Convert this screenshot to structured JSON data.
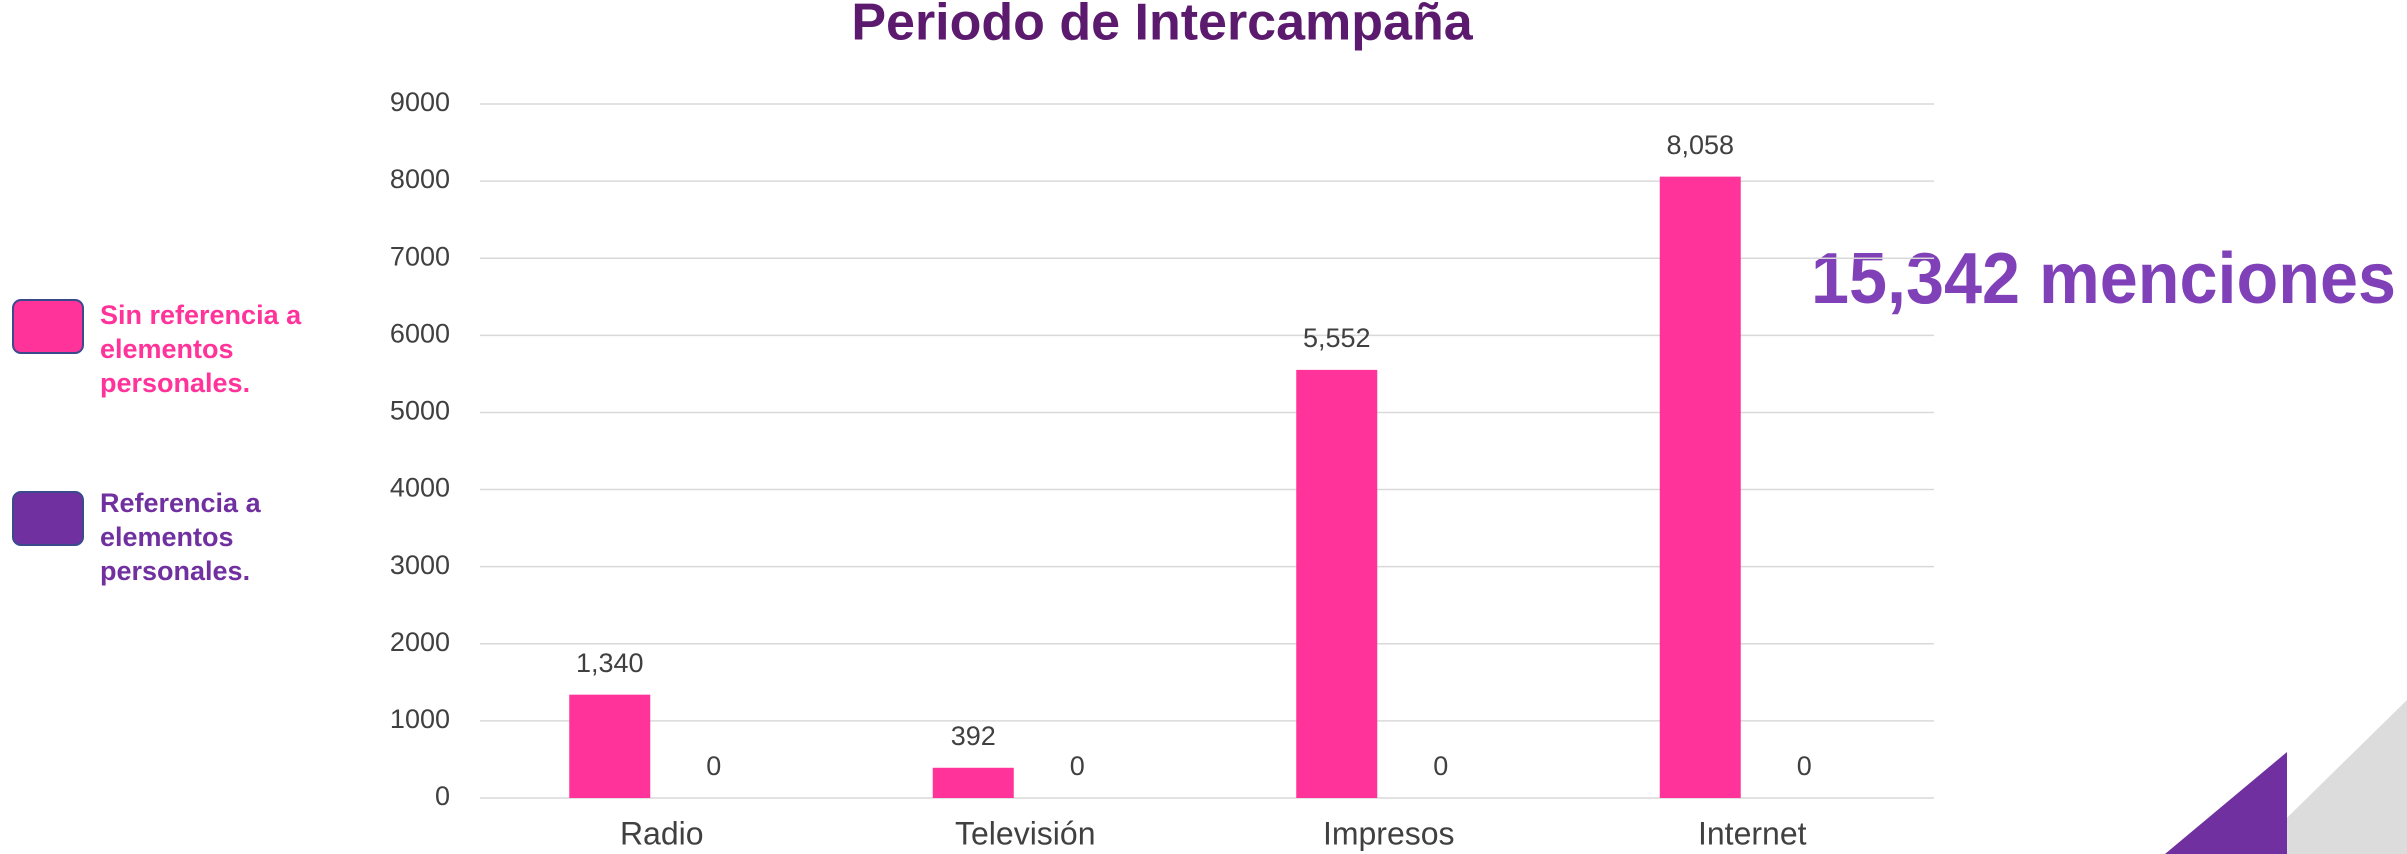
{
  "chart_data": {
    "type": "bar",
    "title": "Periodo de Intercampaña",
    "categories": [
      "Radio",
      "Televisión",
      "Impresos",
      "Internet"
    ],
    "series": [
      {
        "name": "Sin referencia a elementos personales.",
        "color": "#ff3399",
        "values": [
          1340,
          392,
          5552,
          8058
        ],
        "value_labels": [
          "1,340",
          "392",
          "5,552",
          "8,058"
        ]
      },
      {
        "name": "Referencia a elementos personales.",
        "color": "#7030a0",
        "values": [
          0,
          0,
          0,
          0
        ]
      }
    ],
    "ylim": [
      0,
      9000
    ],
    "yticks": [
      0,
      1000,
      2000,
      3000,
      4000,
      5000,
      6000,
      7000,
      8000,
      9000
    ],
    "grid": true,
    "annotation": "15,342 menciones"
  }
}
